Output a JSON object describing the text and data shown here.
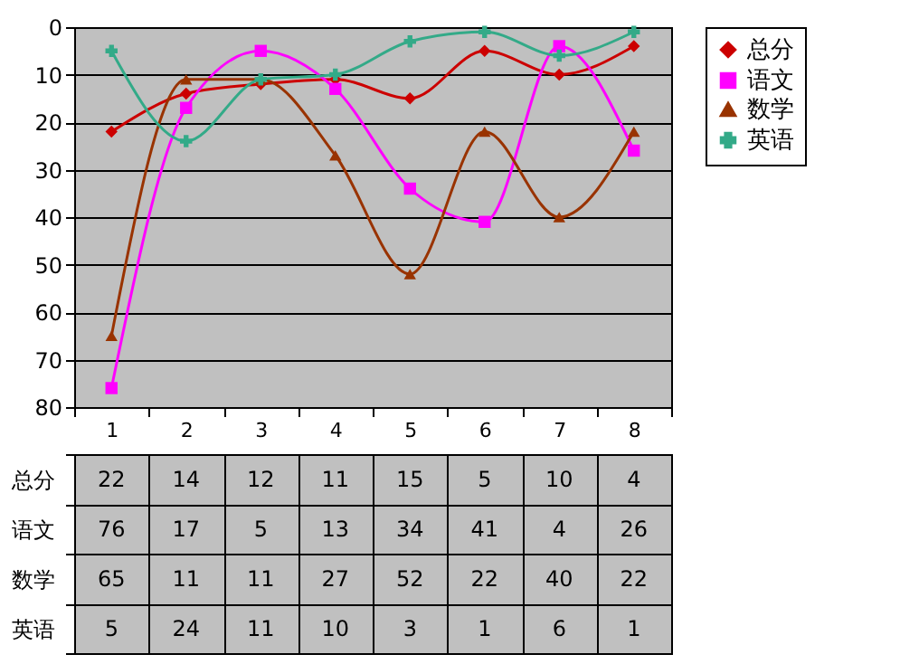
{
  "chart_data": {
    "type": "line",
    "categories": [
      "1",
      "2",
      "3",
      "4",
      "5",
      "6",
      "7",
      "8"
    ],
    "series": [
      {
        "name": "总分",
        "color": "#cc0000",
        "marker": "diamond",
        "values": [
          22,
          14,
          12,
          11,
          15,
          5,
          10,
          4
        ]
      },
      {
        "name": "语文",
        "color": "#ff00ff",
        "marker": "square",
        "values": [
          76,
          17,
          5,
          13,
          34,
          41,
          4,
          26
        ]
      },
      {
        "name": "数学",
        "color": "#993300",
        "marker": "triangle",
        "values": [
          65,
          11,
          11,
          27,
          52,
          22,
          40,
          22
        ]
      },
      {
        "name": "英语",
        "color": "#33aa88",
        "marker": "cross",
        "values": [
          5,
          24,
          11,
          10,
          3,
          1,
          6,
          1
        ]
      }
    ],
    "ylim": [
      80,
      0
    ],
    "yticks": [
      0,
      10,
      20,
      30,
      40,
      50,
      60,
      70,
      80
    ],
    "grid": "y",
    "legend": "right",
    "data_labels": true
  }
}
